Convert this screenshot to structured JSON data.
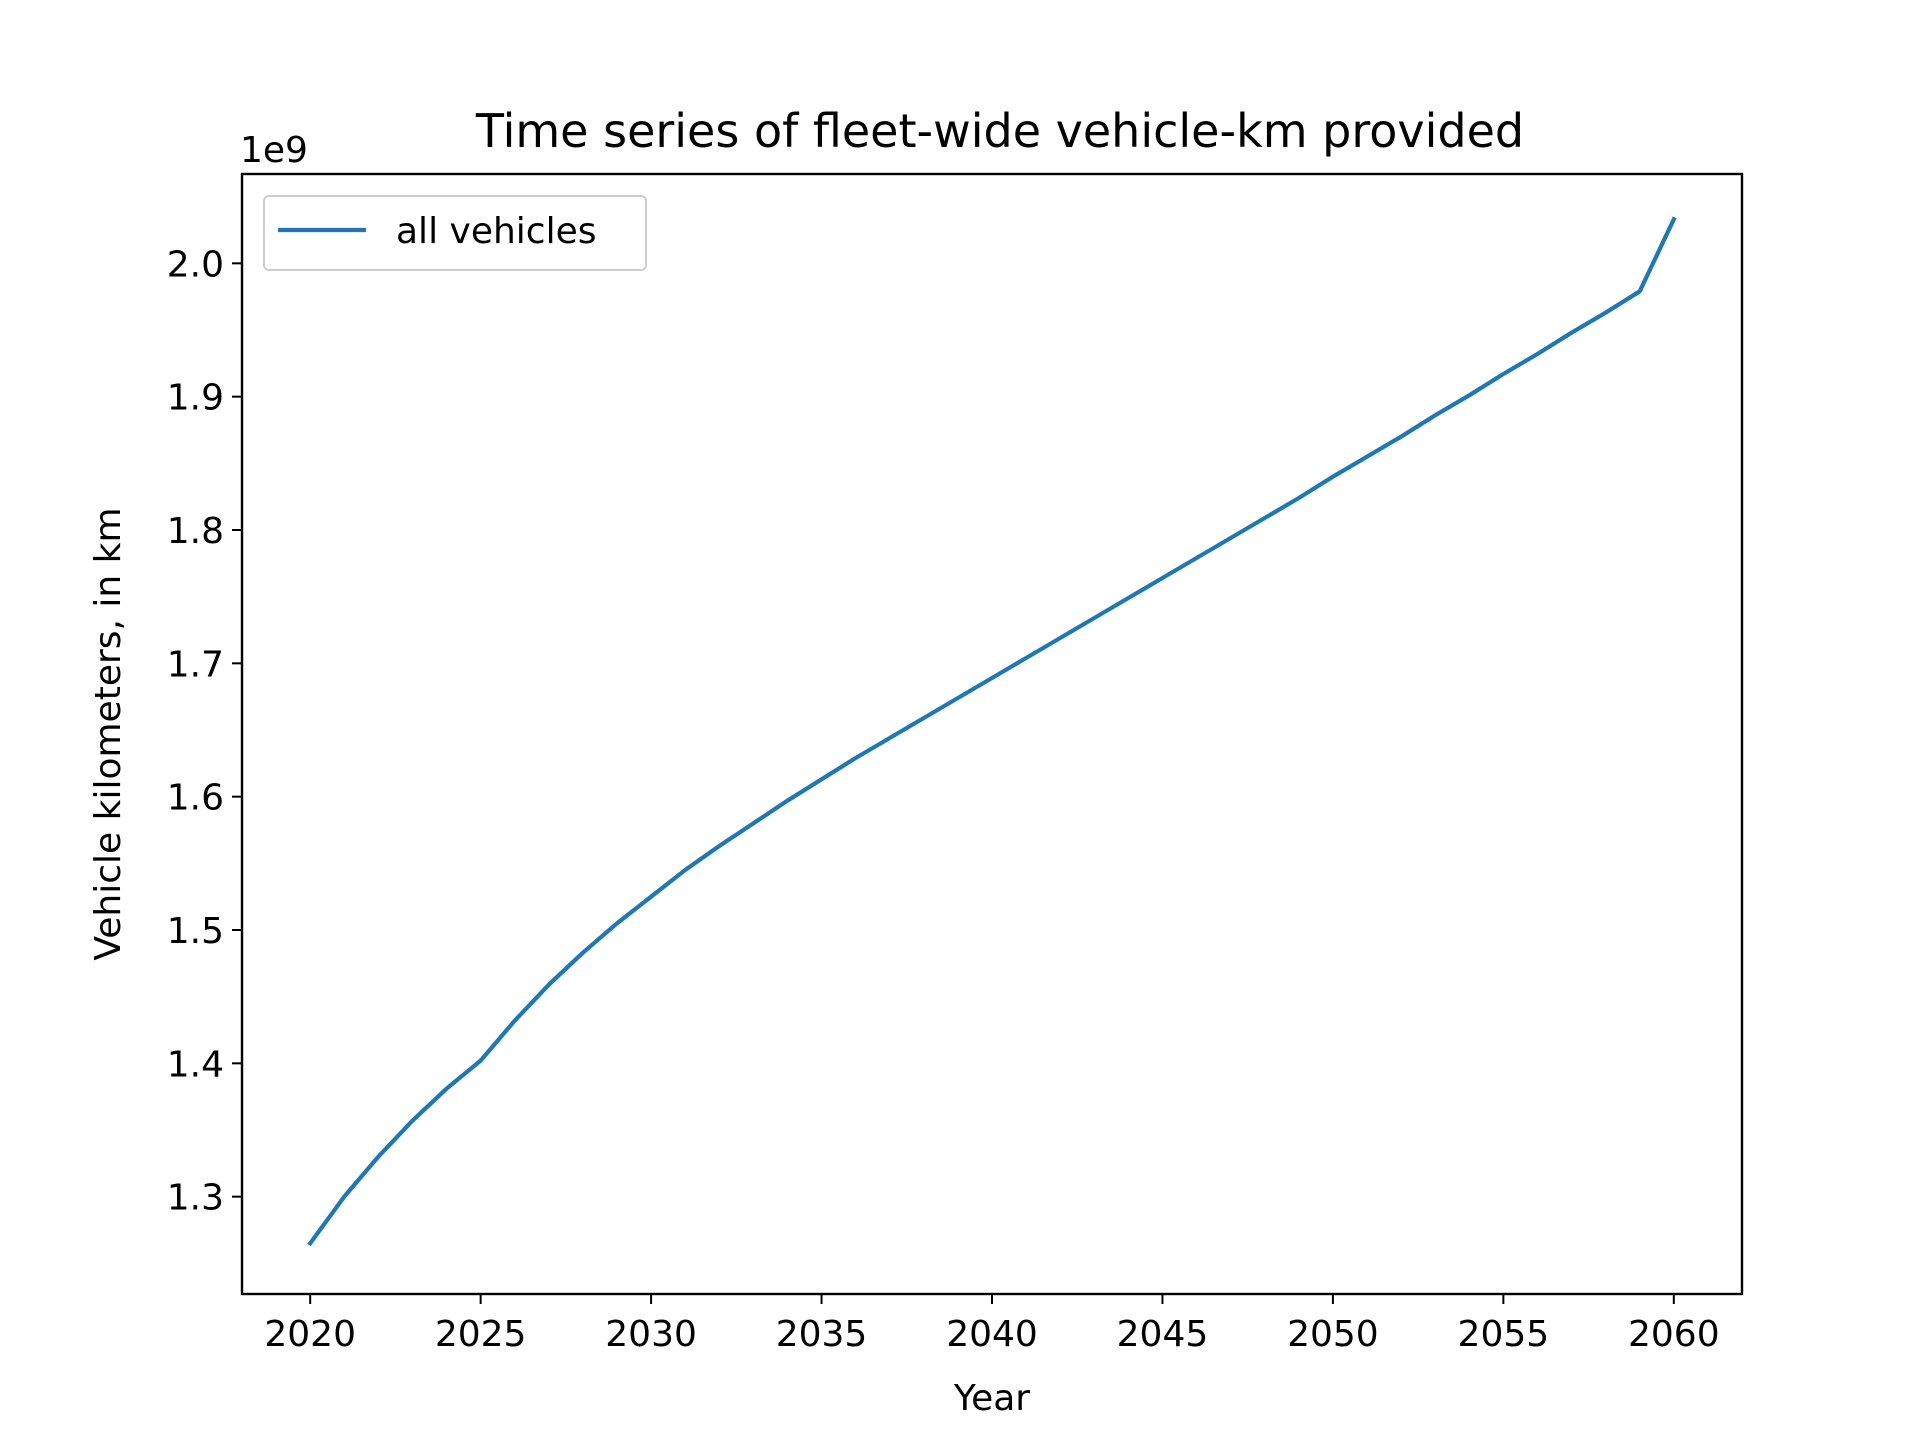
{
  "chart_data": {
    "type": "line",
    "title": "Time series of fleet-wide vehicle-km provided",
    "xlabel": "Year",
    "ylabel": "Vehicle kilometers, in km",
    "y_offset_label": "1e9",
    "y_multiplier": 1000000000,
    "xlim": [
      2018,
      2062
    ],
    "ylim": [
      1227000000.0,
      2067000000.0
    ],
    "x_ticks": [
      2020,
      2025,
      2030,
      2035,
      2040,
      2045,
      2050,
      2055,
      2060
    ],
    "x_tick_labels": [
      "2020",
      "2025",
      "2030",
      "2035",
      "2040",
      "2045",
      "2050",
      "2055",
      "2060"
    ],
    "y_ticks": [
      1300000000.0,
      1400000000.0,
      1500000000.0,
      1600000000.0,
      1700000000.0,
      1800000000.0,
      1900000000.0,
      2000000000.0
    ],
    "y_tick_labels": [
      "1.3",
      "1.4",
      "1.5",
      "1.6",
      "1.7",
      "1.8",
      "1.9",
      "2.0"
    ],
    "grid": false,
    "legend": {
      "position": "top-left",
      "entries": [
        "all vehicles"
      ]
    },
    "series": [
      {
        "name": "all vehicles",
        "color": "#1f77b4",
        "x": [
          2020,
          2021,
          2022,
          2023,
          2024,
          2025,
          2026,
          2027,
          2028,
          2029,
          2030,
          2031,
          2032,
          2033,
          2034,
          2035,
          2036,
          2037,
          2038,
          2039,
          2040,
          2041,
          2042,
          2043,
          2044,
          2045,
          2046,
          2047,
          2048,
          2049,
          2050,
          2051,
          2052,
          2053,
          2054,
          2055,
          2056,
          2057,
          2058,
          2059,
          2060
        ],
        "y": [
          1265000000.0,
          1300000000.0,
          1330000000.0,
          1357000000.0,
          1381000000.0,
          1402000000.0,
          1432000000.0,
          1459000000.0,
          1483000000.0,
          1505000000.0,
          1525000000.0,
          1545000000.0,
          1563000000.0,
          1580000000.0,
          1597000000.0,
          1613000000.0,
          1629000000.0,
          1644000000.0,
          1659000000.0,
          1674000000.0,
          1689000000.0,
          1704000000.0,
          1719000000.0,
          1734000000.0,
          1749000000.0,
          1764000000.0,
          1779000000.0,
          1794000000.0,
          1809000000.0,
          1824000000.0,
          1840000000.0,
          1855000000.0,
          1870000000.0,
          1886000000.0,
          1901000000.0,
          1917000000.0,
          1932000000.0,
          1948000000.0,
          1963000000.0,
          1979000000.0,
          2033000000.0
        ]
      }
    ]
  }
}
